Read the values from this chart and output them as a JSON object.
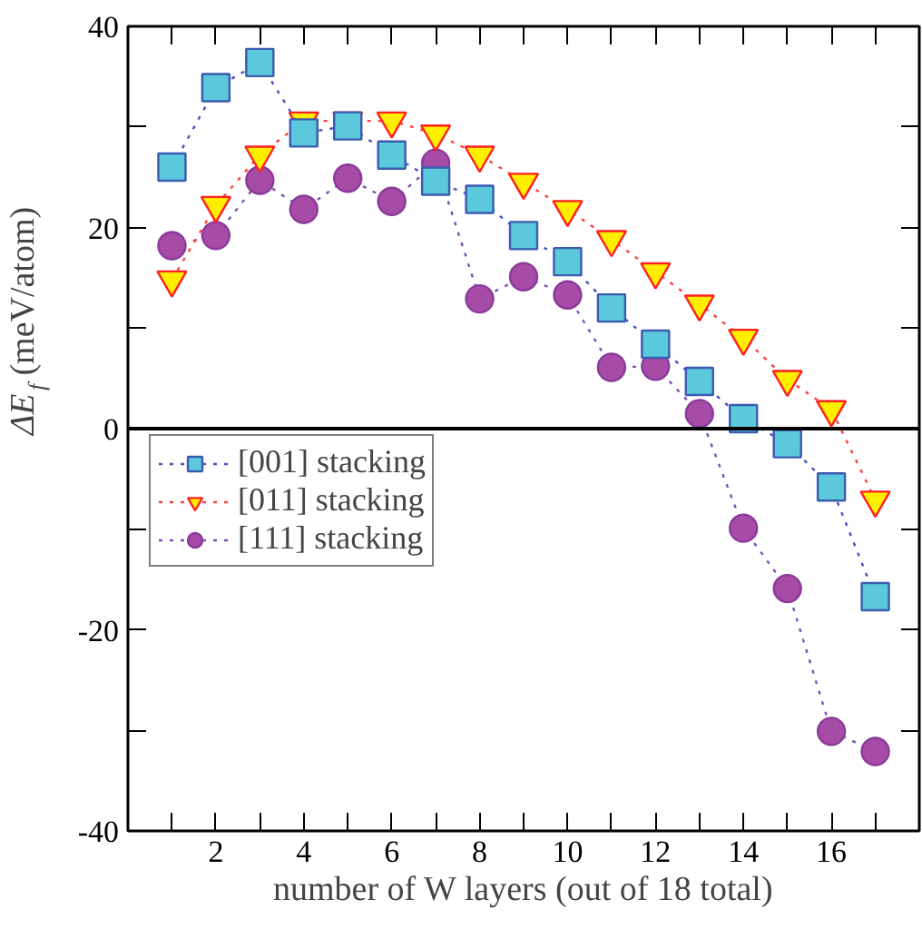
{
  "chart_data": {
    "type": "line",
    "xlabel": "number of W layers (out of 18 total)",
    "ylabel": "ΔE$_{f}$ (meV/atom)",
    "x": [
      1,
      2,
      3,
      4,
      5,
      6,
      7,
      8,
      9,
      10,
      11,
      12,
      13,
      14,
      15,
      16,
      17
    ],
    "xlim": [
      0,
      18
    ],
    "ylim": [
      -40,
      40
    ],
    "xticks": [
      {
        "value": 1,
        "label": null
      },
      2,
      {
        "value": 3,
        "label": null
      },
      4,
      {
        "value": 5,
        "label": null
      },
      6,
      {
        "value": 7,
        "label": null
      },
      8,
      {
        "value": 9,
        "label": null
      },
      10,
      {
        "value": 11,
        "label": null
      },
      12,
      {
        "value": 13,
        "label": null
      },
      14,
      {
        "value": 15,
        "label": null
      },
      16,
      {
        "value": 17,
        "label": null
      }
    ],
    "yticks": [
      -40,
      {
        "value": -30,
        "label": null
      },
      -20,
      {
        "value": -10,
        "label": null
      },
      0,
      {
        "value": 10,
        "label": null
      },
      20,
      {
        "value": 30,
        "label": null
      },
      40
    ],
    "grid": false,
    "legend": "left",
    "line_style": "dotted",
    "ref_lines": [
      {
        "axis": "y",
        "value": 0,
        "color": "#000000",
        "line_style": "solid"
      }
    ],
    "series": [
      {
        "name": "[001] stacking",
        "color": "#5bc8dc",
        "marker": "square",
        "values": [
          26.0,
          33.9,
          36.4,
          29.4,
          30.1,
          27.2,
          24.6,
          22.8,
          19.2,
          16.6,
          12.0,
          8.4,
          4.7,
          1.0,
          -1.5,
          -5.8,
          -16.7
        ]
      },
      {
        "name": "[011] stacking",
        "color": "#ffee00",
        "marker": "triangle",
        "values": [
          14.8,
          22.2,
          27.2,
          30.6,
          30.6,
          30.6,
          29.3,
          27.2,
          24.5,
          21.8,
          18.8,
          15.6,
          12.4,
          9.0,
          4.9,
          1.9,
          -7.1
        ]
      },
      {
        "name": "[111] stacking",
        "color": "#a64ca6",
        "marker": "circle",
        "values": [
          18.2,
          19.2,
          24.7,
          21.8,
          24.9,
          22.6,
          26.4,
          12.9,
          15.1,
          13.3,
          6.1,
          6.2,
          1.5,
          -9.9,
          -15.9,
          -30.1,
          -32.1
        ]
      }
    ]
  }
}
